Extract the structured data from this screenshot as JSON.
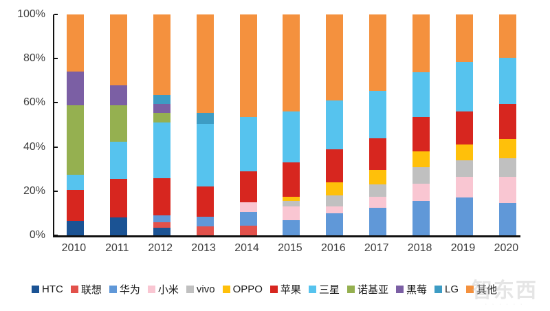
{
  "chart_data": {
    "type": "bar",
    "stacked": true,
    "percent_stacked": true,
    "title": "",
    "xlabel": "",
    "ylabel": "",
    "unit": "%",
    "grid": false,
    "legend_position": "bottom",
    "ylim": [
      0,
      100
    ],
    "yticks": [
      "0%",
      "20%",
      "40%",
      "60%",
      "80%",
      "100%"
    ],
    "categories": [
      "2010",
      "2011",
      "2012",
      "2013",
      "2014",
      "2015",
      "2016",
      "2017",
      "2018",
      "2019",
      "2020"
    ],
    "series": [
      {
        "name": "HTC",
        "color": "#1B5394",
        "values": [
          6.5,
          8,
          3.5,
          0,
          0,
          0,
          0,
          0,
          0,
          0,
          0
        ]
      },
      {
        "name": "联想",
        "color": "#E2514B",
        "values": [
          0,
          0,
          2.5,
          4,
          4.5,
          0,
          0,
          0,
          0,
          0,
          0
        ]
      },
      {
        "name": "华为",
        "color": "#6098D8",
        "values": [
          0,
          0,
          3,
          4.5,
          6,
          7,
          10,
          12.5,
          15.5,
          17,
          14.5
        ]
      },
      {
        "name": "小米",
        "color": "#F9C6D2",
        "values": [
          0,
          0,
          0,
          0,
          4.5,
          6,
          3,
          5,
          8,
          9.5,
          12
        ]
      },
      {
        "name": "vivo",
        "color": "#C0C0C0",
        "values": [
          0,
          0,
          0,
          0,
          0,
          2.5,
          5,
          5.5,
          7.5,
          7.5,
          8.5
        ]
      },
      {
        "name": "OPPO",
        "color": "#FFC00A",
        "values": [
          0,
          0,
          0,
          0,
          0,
          2,
          6,
          6.5,
          7,
          7,
          8.5
        ]
      },
      {
        "name": "苹果",
        "color": "#D7261F",
        "values": [
          14,
          17.5,
          17,
          13.5,
          14,
          15.5,
          15,
          14.5,
          15.5,
          15,
          16
        ]
      },
      {
        "name": "三星",
        "color": "#56C3EE",
        "values": [
          7,
          17,
          25,
          28.5,
          24.5,
          23,
          22,
          21.5,
          20.5,
          22.5,
          21
        ]
      },
      {
        "name": "诺基亚",
        "color": "#95B050",
        "values": [
          31.5,
          16.5,
          4.5,
          0,
          0,
          0,
          0,
          0,
          0,
          0,
          0
        ]
      },
      {
        "name": "黑莓",
        "color": "#7B5FA4",
        "values": [
          15,
          9,
          4,
          0,
          0,
          0,
          0,
          0,
          0,
          0,
          0
        ]
      },
      {
        "name": "LG",
        "color": "#3D9CC4",
        "values": [
          0,
          0,
          4,
          5,
          0,
          0,
          0,
          0,
          0,
          0,
          0
        ]
      },
      {
        "name": "其他",
        "color": "#F4913E",
        "values": [
          26,
          32,
          36.5,
          44.5,
          46.5,
          44,
          39,
          34.5,
          26,
          21.5,
          19.5
        ]
      }
    ]
  },
  "watermark": {
    "text": "智东西",
    "dots": "· · · · · ·"
  }
}
